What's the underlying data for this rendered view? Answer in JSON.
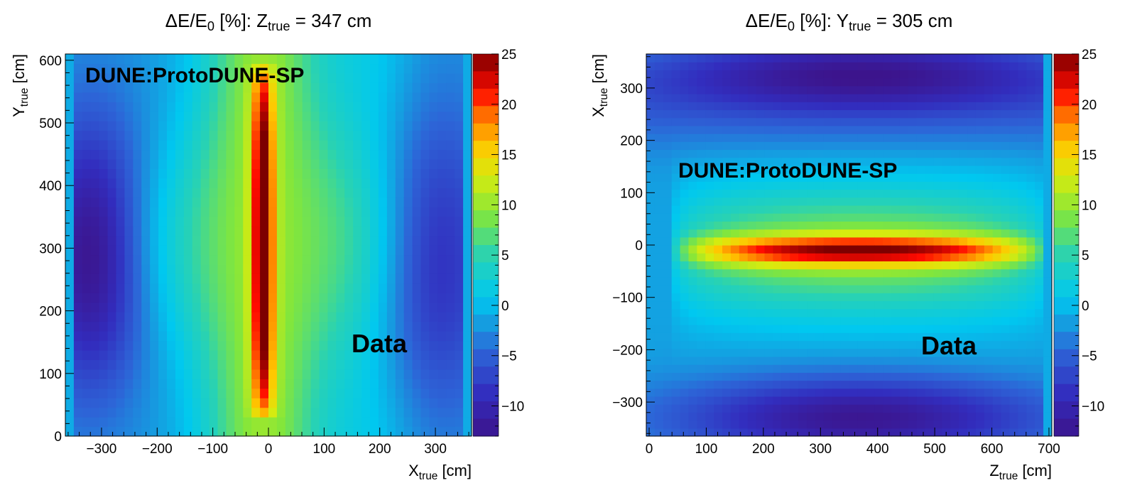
{
  "chart_data": [
    {
      "type": "heatmap",
      "title": {
        "pre": "ΔE/E",
        "pre_sub": "0",
        "mid": " [%]:   Z",
        "mid_sub": "true",
        "post": " = 347 cm"
      },
      "xlabel": {
        "main": "X",
        "sub": "true",
        "unit": " [cm]"
      },
      "ylabel": {
        "main": "Y",
        "sub": "true",
        "unit": " [cm]"
      },
      "xlim": [
        -365,
        365
      ],
      "ylim": [
        0,
        610
      ],
      "x_ticks": [
        -300,
        -200,
        -100,
        0,
        100,
        200,
        300
      ],
      "x_tick_labels": [
        "−300",
        "−200",
        "−100",
        "0",
        "100",
        "200",
        "300"
      ],
      "y_ticks": [
        0,
        100,
        200,
        300,
        400,
        500,
        600
      ],
      "y_tick_labels": [
        "0",
        "100",
        "200",
        "300",
        "400",
        "500",
        "600"
      ],
      "z_range": [
        -13,
        25
      ],
      "z_ticks": [
        -10,
        -5,
        0,
        5,
        10,
        15,
        20,
        25
      ],
      "z_tick_labels": [
        "−10",
        "−5",
        "0",
        "5",
        "10",
        "15",
        "20",
        "25"
      ],
      "bins": {
        "nx": 48,
        "ny": 40
      },
      "field_summary": {
        "hot_band_center_x": -10,
        "hot_band_peak": 25,
        "hot_band_edge_y": [
          40,
          580
        ],
        "cold_region_x": -320,
        "cold_region_min": -13,
        "outer_edge_value": -1
      },
      "annotations": {
        "experiment": "DUNE:ProtoDUNE-SP",
        "dataset": "Data"
      }
    },
    {
      "type": "heatmap",
      "title": {
        "pre": "ΔE/E",
        "pre_sub": "0",
        "mid": " [%]:   Y",
        "mid_sub": "true",
        "post": " = 305 cm"
      },
      "xlabel": {
        "main": "Z",
        "sub": "true",
        "unit": " [cm]"
      },
      "ylabel": {
        "main": "X",
        "sub": "true",
        "unit": " [cm]"
      },
      "xlim": [
        -5,
        705
      ],
      "ylim": [
        -365,
        365
      ],
      "x_ticks": [
        0,
        100,
        200,
        300,
        400,
        500,
        600,
        700
      ],
      "x_tick_labels": [
        "0",
        "100",
        "200",
        "300",
        "400",
        "500",
        "600",
        "700"
      ],
      "y_ticks": [
        -300,
        -200,
        -100,
        0,
        100,
        200,
        300
      ],
      "y_tick_labels": [
        "−300",
        "−200",
        "−100",
        "0",
        "100",
        "200",
        "300"
      ],
      "z_range": [
        -13,
        25
      ],
      "z_ticks": [
        -10,
        -5,
        0,
        5,
        10,
        15,
        20,
        25
      ],
      "z_tick_labels": [
        "−10",
        "−5",
        "0",
        "5",
        "10",
        "15",
        "20",
        "25"
      ],
      "bins": {
        "nx": 48,
        "ny": 48
      },
      "field_summary": {
        "hot_band_center_x": -10,
        "hot_band_peak": 25,
        "hot_band_edge_z": [
          50,
          690
        ],
        "cold_region_top_min": -11,
        "cold_region_bottom_min": -12
      },
      "annotations": {
        "experiment": "DUNE:ProtoDUNE-SP",
        "dataset": "Data"
      }
    }
  ]
}
